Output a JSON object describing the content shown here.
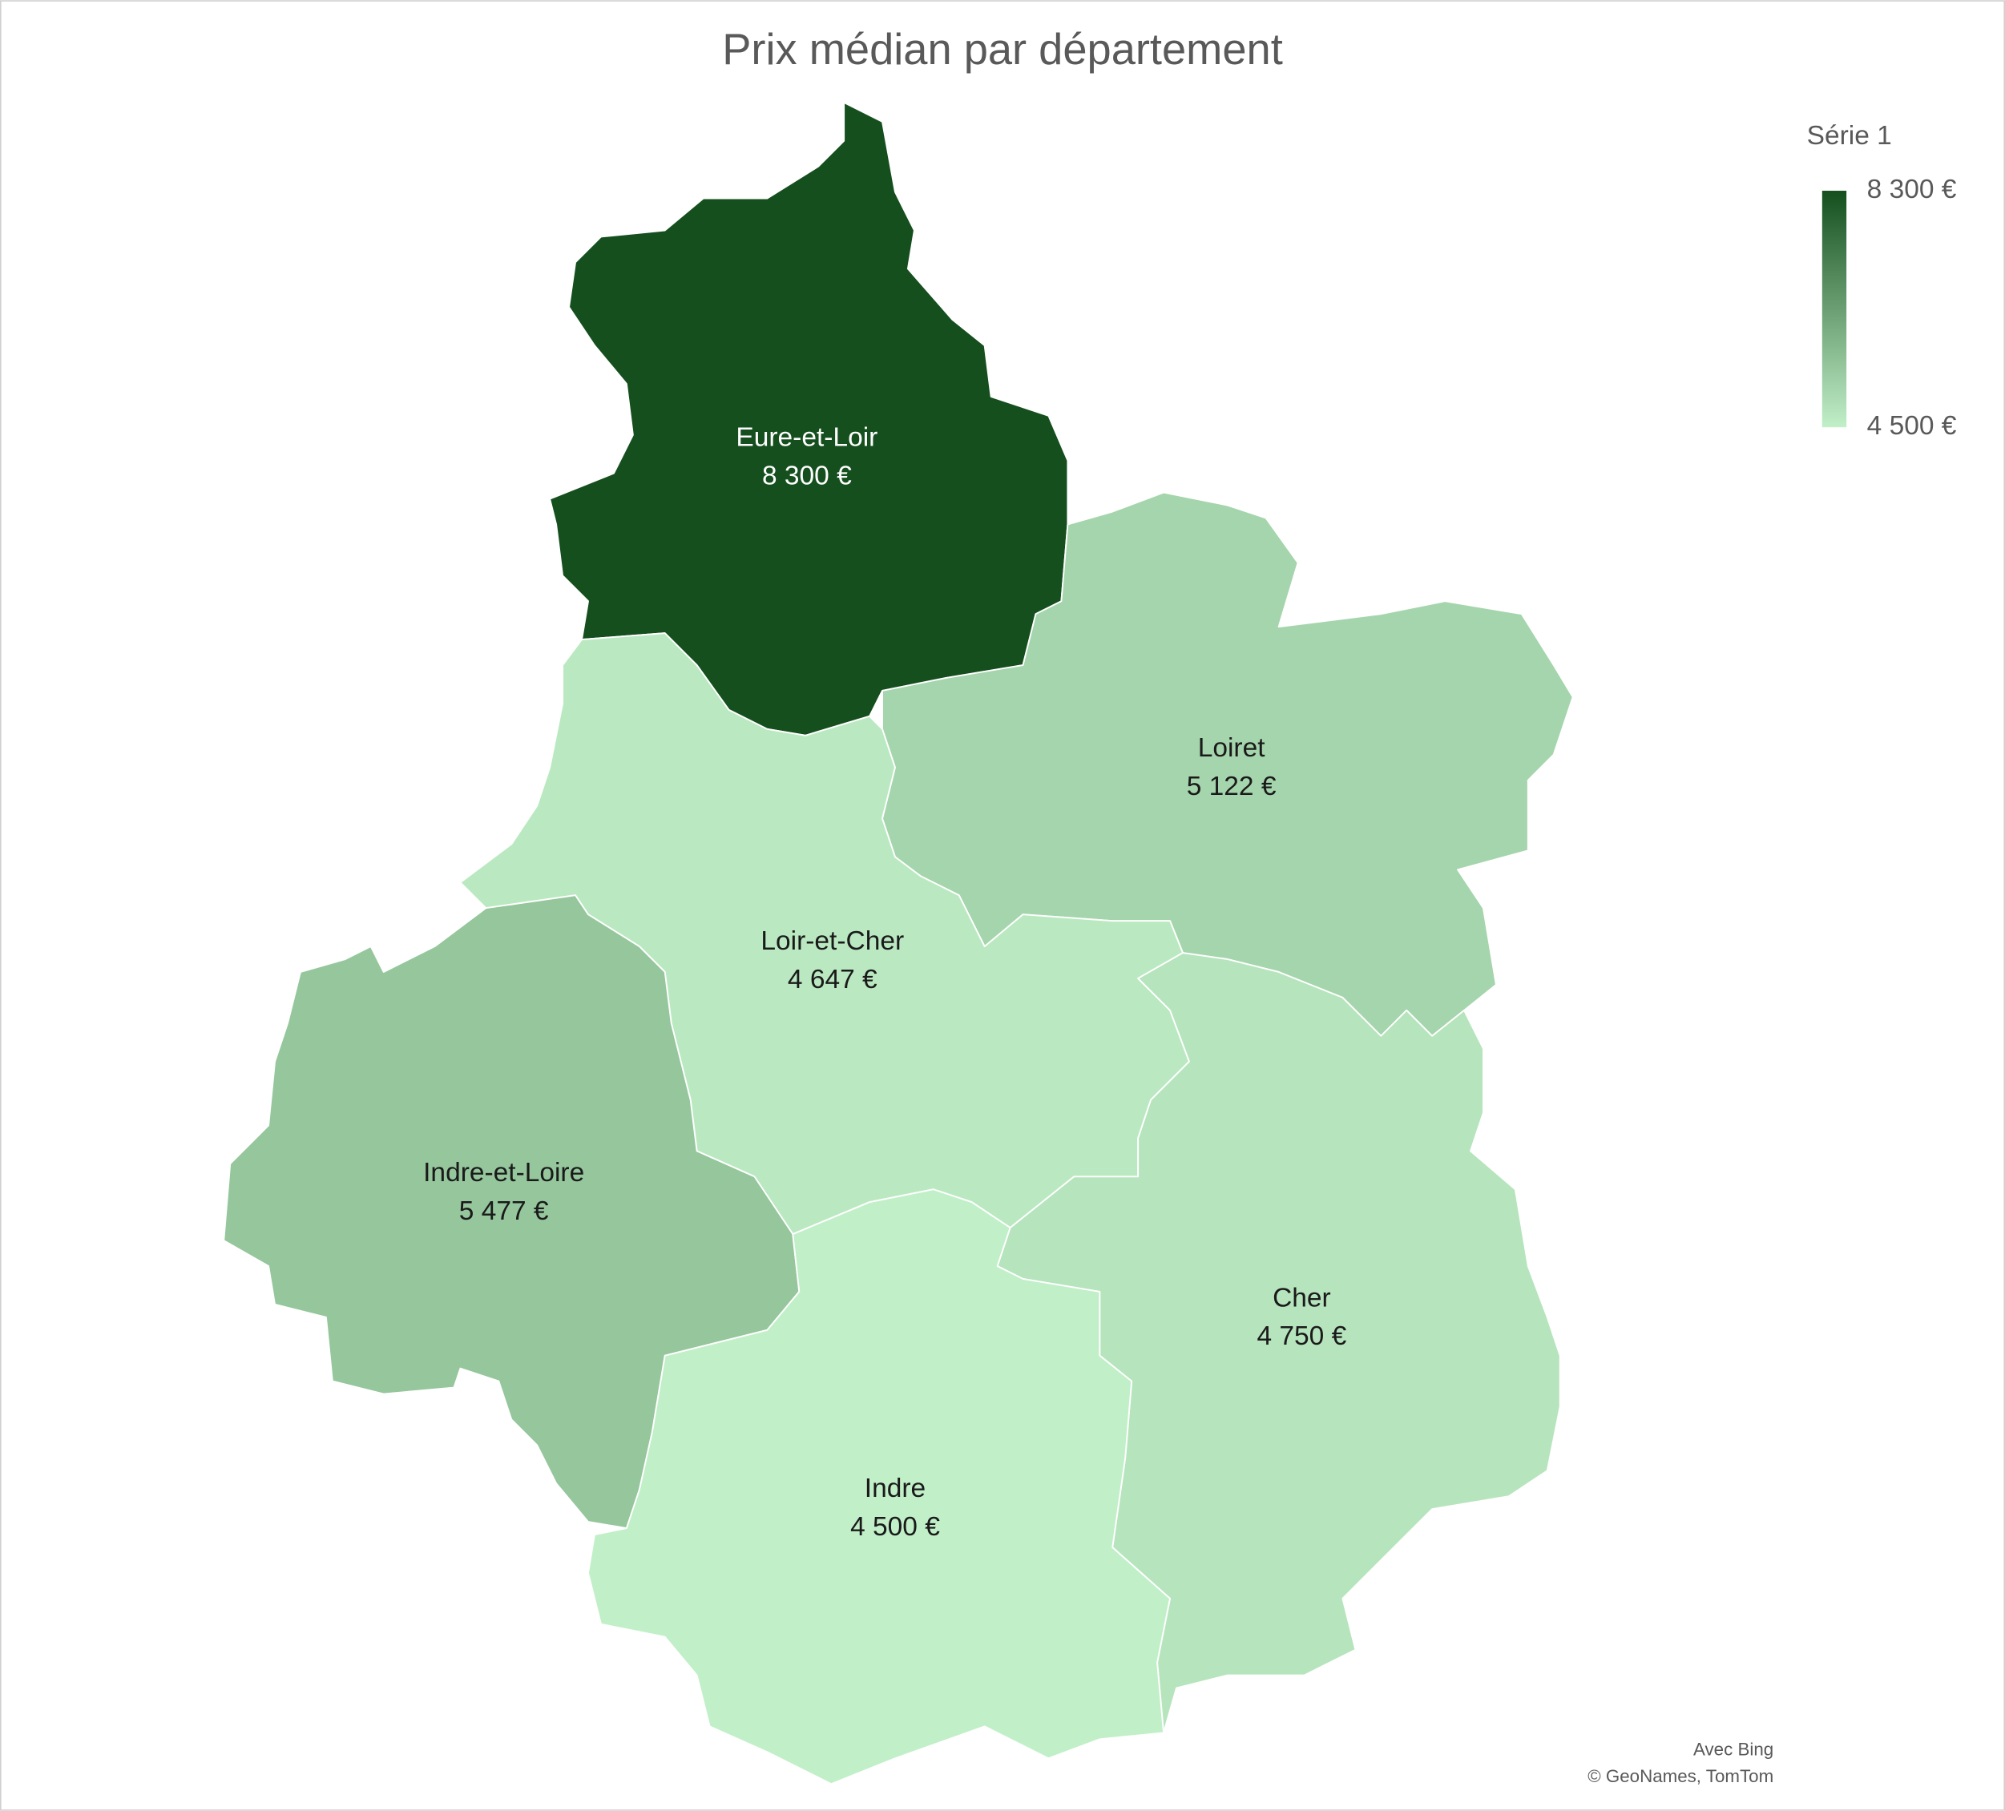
{
  "chart_data": {
    "type": "choropleth",
    "title": "Prix médian par département",
    "legend_title": "Série 1",
    "categories": [
      "Eure-et-Loir",
      "Loiret",
      "Loir-et-Cher",
      "Indre-et-Loire",
      "Cher",
      "Indre"
    ],
    "values": [
      8300,
      5122,
      4647,
      5477,
      4750,
      4500
    ],
    "value_labels": [
      "8 300 €",
      "5 122 €",
      "4 647 €",
      "5 477 €",
      "4 750 €",
      "4 500 €"
    ],
    "clim": [
      4500,
      8300
    ],
    "cticks": [
      {
        "value": 8300,
        "label": "8 300 €"
      },
      {
        "value": 4500,
        "label": "4 500 €"
      }
    ],
    "color_min": "#c1efc8",
    "color_max": "#154f1e",
    "attribution": [
      "Avec Bing",
      "© GeoNames, TomTom"
    ]
  }
}
